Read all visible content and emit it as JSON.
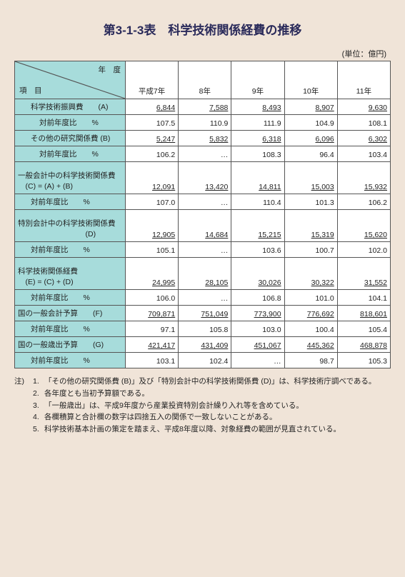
{
  "title": "第3-1-3表　科学技術関係経費の推移",
  "unit": "(単位：億円)",
  "header": {
    "yearLabel": "年　度",
    "itemLabel": "項　目",
    "cols": [
      "平成7年",
      "8年",
      "9年",
      "10年",
      "11年"
    ]
  },
  "rows": [
    {
      "label": "科学技術振興費　　(A)",
      "cls": "sub",
      "ul": true,
      "vals": [
        "6,844",
        "7,588",
        "8,493",
        "8,907",
        "9,630"
      ]
    },
    {
      "label": "対前年度比　　%",
      "cls": "sub2",
      "vals": [
        "107.5",
        "110.9",
        "111.9",
        "104.9",
        "108.1"
      ]
    },
    {
      "label": "その他の研究関係費 (B)",
      "cls": "sub",
      "ul": true,
      "vals": [
        "5,247",
        "5,832",
        "6,318",
        "6,096",
        "6,302"
      ]
    },
    {
      "label": "対前年度比　　%",
      "cls": "sub2",
      "vals": [
        "106.2",
        "…",
        "108.3",
        "96.4",
        "103.4"
      ]
    },
    {
      "label": "一般会計中の科学技術関係費\n　(C) = (A) + (B)",
      "cls": "",
      "tall": true,
      "ul": true,
      "vals": [
        "12,091",
        "13,420",
        "14,811",
        "15,003",
        "15,932"
      ]
    },
    {
      "label": "対前年度比　　%",
      "cls": "sub",
      "vals": [
        "107.0",
        "…",
        "110.4",
        "101.3",
        "106.2"
      ]
    },
    {
      "label": "特別会計中の科学技術関係費\n　　　　　　　　　(D)",
      "cls": "",
      "tall": true,
      "ul": true,
      "vals": [
        "12,905",
        "14,684",
        "15,215",
        "15,319",
        "15,620"
      ]
    },
    {
      "label": "対前年度比　　%",
      "cls": "sub",
      "vals": [
        "105.1",
        "…",
        "103.6",
        "100.7",
        "102.0"
      ]
    },
    {
      "label": "科学技術関係経費\n　(E) = (C) + (D)",
      "cls": "",
      "tall": true,
      "ul": true,
      "vals": [
        "24,995",
        "28,105",
        "30,026",
        "30,322",
        "31,552"
      ]
    },
    {
      "label": "対前年度比　　%",
      "cls": "sub",
      "vals": [
        "106.0",
        "…",
        "106.8",
        "101.0",
        "104.1"
      ]
    },
    {
      "label": "国の一般会計予算　　(F)",
      "cls": "",
      "ul": true,
      "vals": [
        "709,871",
        "751,049",
        "773,900",
        "776,692",
        "818,601"
      ]
    },
    {
      "label": "対前年度比　　%",
      "cls": "sub",
      "vals": [
        "97.1",
        "105.8",
        "103.0",
        "100.4",
        "105.4"
      ]
    },
    {
      "label": "国の一般歳出予算　　(G)",
      "cls": "",
      "ul": true,
      "vals": [
        "421,417",
        "431,409",
        "451,067",
        "445,362",
        "468,878"
      ]
    },
    {
      "label": "対前年度比　　%",
      "cls": "sub",
      "vals": [
        "103.1",
        "102.4",
        "…",
        "98.7",
        "105.3"
      ]
    }
  ],
  "notes": [
    "「その他の研究関係費 (B)」及び「特別会計中の科学技術関係費 (D)」は、科学技術庁調べである。",
    "各年度とも当初予算額である。",
    "「一般歳出」は、平成9年度から産業投資特別会計繰り入れ等を含めている。",
    "各欄積算と合計欄の数字は四捨五入の関係で一致しないことがある。",
    "科学技術基本計画の策定を踏まえ、平成8年度以降、対象経費の範囲が見直されている。"
  ],
  "noteLabel": "注)"
}
